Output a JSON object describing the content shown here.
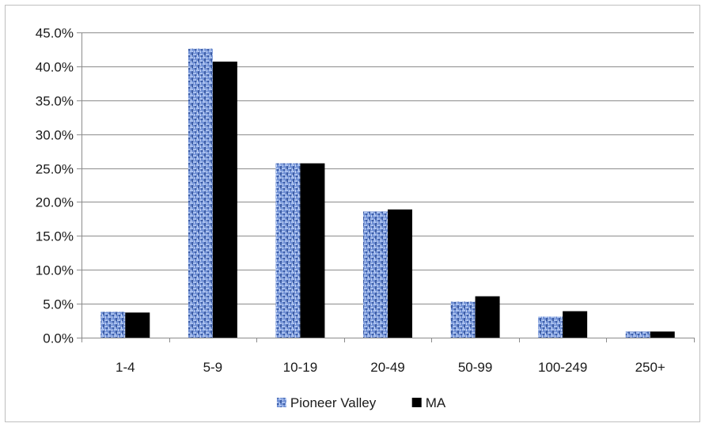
{
  "chart_data": {
    "type": "bar",
    "categories": [
      "1-4",
      "5-9",
      "10-19",
      "20-49",
      "50-99",
      "100-249",
      "250+"
    ],
    "series": [
      {
        "name": "Pioneer Valley",
        "values": [
          3.8,
          42.6,
          25.7,
          18.6,
          5.3,
          3.1,
          0.9
        ],
        "color": "#5b7fc9",
        "pattern": "woven-texture"
      },
      {
        "name": "MA",
        "values": [
          3.7,
          40.7,
          25.7,
          18.9,
          6.1,
          3.9,
          0.9
        ],
        "color": "#000000"
      }
    ],
    "yticks": [
      "0.0%",
      "5.0%",
      "10.0%",
      "15.0%",
      "20.0%",
      "25.0%",
      "30.0%",
      "35.0%",
      "40.0%",
      "45.0%"
    ],
    "ylim": [
      0,
      45
    ],
    "grid": true,
    "legend_position": "bottom"
  }
}
